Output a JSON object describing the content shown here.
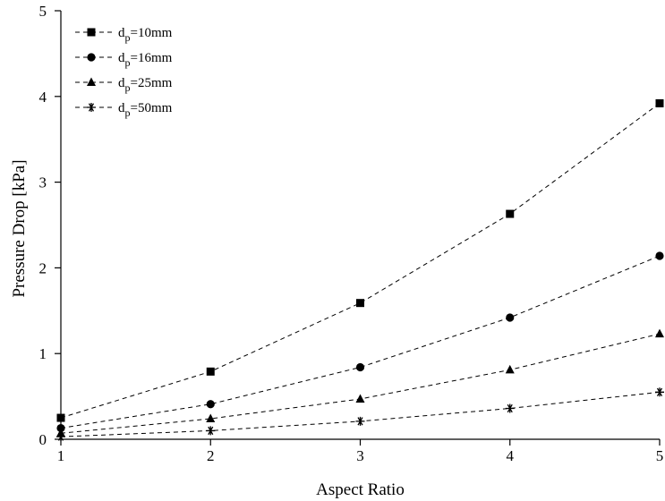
{
  "chart_data": {
    "type": "line",
    "title": "",
    "xlabel": "Aspect Ratio",
    "ylabel": "Pressure Drop [kPa]",
    "xlim": [
      1,
      5
    ],
    "ylim": [
      0,
      5
    ],
    "x_ticks": [
      "1",
      "2",
      "3",
      "4",
      "5"
    ],
    "y_ticks": [
      "0",
      "1",
      "2",
      "3",
      "4",
      "5"
    ],
    "grid": false,
    "legend_position": "top-left",
    "x": [
      1,
      2,
      3,
      4,
      5
    ],
    "series": [
      {
        "name_main": "d",
        "name_sub": "p",
        "name_rest": "=10mm",
        "marker": "square",
        "values": [
          0.25,
          0.79,
          1.59,
          2.63,
          3.92
        ]
      },
      {
        "name_main": "d",
        "name_sub": "p",
        "name_rest": "=16mm",
        "marker": "circle",
        "values": [
          0.13,
          0.41,
          0.84,
          1.42,
          2.14
        ]
      },
      {
        "name_main": "d",
        "name_sub": "p",
        "name_rest": "=25mm",
        "marker": "triangle",
        "values": [
          0.07,
          0.24,
          0.47,
          0.81,
          1.23
        ]
      },
      {
        "name_main": "d",
        "name_sub": "p",
        "name_rest": "=50mm",
        "marker": "star",
        "values": [
          0.03,
          0.1,
          0.21,
          0.36,
          0.55
        ]
      }
    ]
  }
}
